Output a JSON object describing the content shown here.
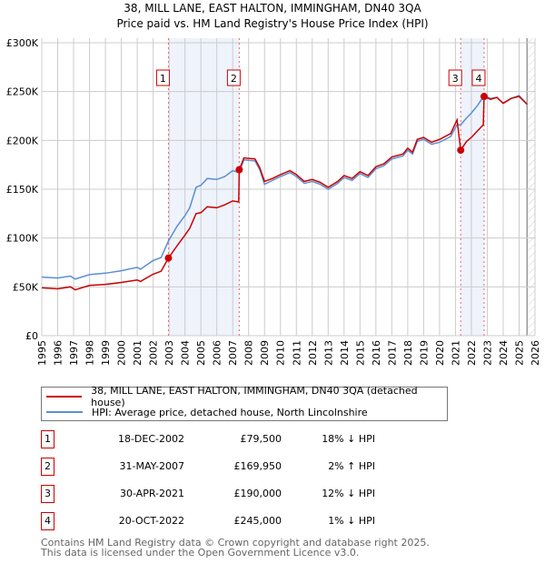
{
  "chart_data": {
    "type": "line",
    "title": "38, MILL LANE, EAST HALTON, IMMINGHAM, DN40 3QA",
    "subtitle": "Price paid vs. HM Land Registry's House Price Index (HPI)",
    "xlim": [
      1995,
      2026
    ],
    "ylim": [
      0,
      300000
    ],
    "x_ticks": [
      "1995",
      "1996",
      "1997",
      "1998",
      "1999",
      "2000",
      "2001",
      "2002",
      "2003",
      "2004",
      "2005",
      "2006",
      "2007",
      "2008",
      "2009",
      "2010",
      "2011",
      "2012",
      "2013",
      "2014",
      "2015",
      "2016",
      "2017",
      "2018",
      "2019",
      "2020",
      "2021",
      "2022",
      "2023",
      "2024",
      "2025",
      "2026"
    ],
    "y_ticks": [
      {
        "v": 0,
        "label": "£0"
      },
      {
        "v": 50000,
        "label": "£50K"
      },
      {
        "v": 100000,
        "label": "£100K"
      },
      {
        "v": 150000,
        "label": "£150K"
      },
      {
        "v": 200000,
        "label": "£200K"
      },
      {
        "v": 250000,
        "label": "£250K"
      },
      {
        "v": 300000,
        "label": "£300K"
      }
    ],
    "grid": true,
    "series": [
      {
        "name": "38, MILL LANE, EAST HALTON, IMMINGHAM, DN40 3QA (detached house)",
        "color": "#cc0000",
        "points": [
          [
            1995,
            49000
          ],
          [
            1996,
            48000
          ],
          [
            1996.8,
            50000
          ],
          [
            1997.1,
            47000
          ],
          [
            1998,
            51500
          ],
          [
            1999,
            52500
          ],
          [
            2000,
            54500
          ],
          [
            2001,
            57000
          ],
          [
            2001.2,
            55500
          ],
          [
            2002,
            63000
          ],
          [
            2002.5,
            66000
          ],
          [
            2002.96,
            79500
          ],
          [
            2003.5,
            92000
          ],
          [
            2004,
            103000
          ],
          [
            2004.3,
            110000
          ],
          [
            2004.7,
            125000
          ],
          [
            2005,
            126000
          ],
          [
            2005.4,
            132000
          ],
          [
            2006,
            131000
          ],
          [
            2006.5,
            134000
          ],
          [
            2007,
            138000
          ],
          [
            2007.38,
            137000
          ],
          [
            2007.41,
            169950
          ],
          [
            2007.7,
            182000
          ],
          [
            2008.4,
            181000
          ],
          [
            2008.7,
            172000
          ],
          [
            2009,
            158000
          ],
          [
            2009.5,
            161000
          ],
          [
            2010,
            165000
          ],
          [
            2010.6,
            169000
          ],
          [
            2011,
            165000
          ],
          [
            2011.5,
            158000
          ],
          [
            2012,
            160000
          ],
          [
            2012.5,
            157000
          ],
          [
            2013,
            152000
          ],
          [
            2013.6,
            158000
          ],
          [
            2014,
            164000
          ],
          [
            2014.5,
            161000
          ],
          [
            2015,
            168000
          ],
          [
            2015.5,
            164000
          ],
          [
            2016,
            173000
          ],
          [
            2016.5,
            176000
          ],
          [
            2017,
            183000
          ],
          [
            2017.7,
            186000
          ],
          [
            2018,
            192000
          ],
          [
            2018.3,
            188000
          ],
          [
            2018.6,
            201000
          ],
          [
            2019,
            203000
          ],
          [
            2019.5,
            198000
          ],
          [
            2020,
            201000
          ],
          [
            2020.7,
            207000
          ],
          [
            2021.1,
            221000
          ],
          [
            2021.33,
            190000
          ],
          [
            2021.7,
            199000
          ],
          [
            2022,
            203000
          ],
          [
            2022.4,
            210000
          ],
          [
            2022.75,
            216000
          ],
          [
            2022.8,
            245000
          ],
          [
            2023.2,
            242000
          ],
          [
            2023.6,
            244000
          ],
          [
            2024,
            238000
          ],
          [
            2024.5,
            243000
          ],
          [
            2025,
            245000
          ],
          [
            2025.5,
            237000
          ]
        ]
      },
      {
        "name": "HPI: Average price, detached house, North Lincolnshire",
        "color": "#5b8fd4",
        "points": [
          [
            1995,
            60000
          ],
          [
            1996,
            59000
          ],
          [
            1996.8,
            61000
          ],
          [
            1997.1,
            58000
          ],
          [
            1998,
            62500
          ],
          [
            1999,
            64000
          ],
          [
            2000,
            66500
          ],
          [
            2001,
            70000
          ],
          [
            2001.2,
            68000
          ],
          [
            2002,
            77000
          ],
          [
            2002.5,
            80000
          ],
          [
            2002.96,
            97000
          ],
          [
            2003.5,
            112000
          ],
          [
            2004,
            123000
          ],
          [
            2004.3,
            131000
          ],
          [
            2004.7,
            152000
          ],
          [
            2005,
            154000
          ],
          [
            2005.4,
            161000
          ],
          [
            2006,
            160000
          ],
          [
            2006.5,
            163000
          ],
          [
            2007,
            169000
          ],
          [
            2007.41,
            167000
          ],
          [
            2007.7,
            180000
          ],
          [
            2008.4,
            179000
          ],
          [
            2008.7,
            170000
          ],
          [
            2009,
            155000
          ],
          [
            2009.5,
            159000
          ],
          [
            2010,
            163000
          ],
          [
            2010.6,
            167000
          ],
          [
            2011,
            163000
          ],
          [
            2011.5,
            156000
          ],
          [
            2012,
            158000
          ],
          [
            2012.5,
            155000
          ],
          [
            2013,
            150000
          ],
          [
            2013.6,
            156000
          ],
          [
            2014,
            162000
          ],
          [
            2014.5,
            159000
          ],
          [
            2015,
            166000
          ],
          [
            2015.5,
            162000
          ],
          [
            2016,
            171000
          ],
          [
            2016.5,
            174000
          ],
          [
            2017,
            181000
          ],
          [
            2017.7,
            184000
          ],
          [
            2018,
            190000
          ],
          [
            2018.3,
            186000
          ],
          [
            2018.6,
            199000
          ],
          [
            2019,
            201000
          ],
          [
            2019.5,
            196000
          ],
          [
            2020,
            198000
          ],
          [
            2020.7,
            204000
          ],
          [
            2021.1,
            216000
          ],
          [
            2021.33,
            216000
          ],
          [
            2021.7,
            223000
          ],
          [
            2022,
            228000
          ],
          [
            2022.4,
            236000
          ],
          [
            2022.8,
            246000
          ],
          [
            2023.2,
            243000
          ],
          [
            2023.6,
            244000
          ],
          [
            2024,
            238000
          ],
          [
            2024.5,
            243000
          ],
          [
            2025,
            246000
          ],
          [
            2025.5,
            237000
          ]
        ]
      }
    ],
    "sales": [
      {
        "id": "1",
        "x": 2002.96,
        "y": 79500,
        "date": "18-DEC-2002",
        "price": "£79,500",
        "hpi": "18% ↓ HPI"
      },
      {
        "id": "2",
        "x": 2007.41,
        "y": 169950,
        "date": "31-MAY-2007",
        "price": "£169,950",
        "hpi": "2% ↑ HPI"
      },
      {
        "id": "3",
        "x": 2021.33,
        "y": 190000,
        "date": "30-APR-2021",
        "price": "£190,000",
        "hpi": "12% ↓ HPI"
      },
      {
        "id": "4",
        "x": 2022.8,
        "y": 245000,
        "date": "20-OCT-2022",
        "price": "£245,000",
        "hpi": "1% ↓ HPI"
      }
    ],
    "shaded_ranges": [
      [
        2002.96,
        2007.41
      ],
      [
        2021.33,
        2022.8
      ]
    ],
    "forecast_from": 2025.5
  },
  "footer": [
    "Contains HM Land Registry data © Crown copyright and database right 2025.",
    "This data is licensed under the Open Government Licence v3.0."
  ]
}
